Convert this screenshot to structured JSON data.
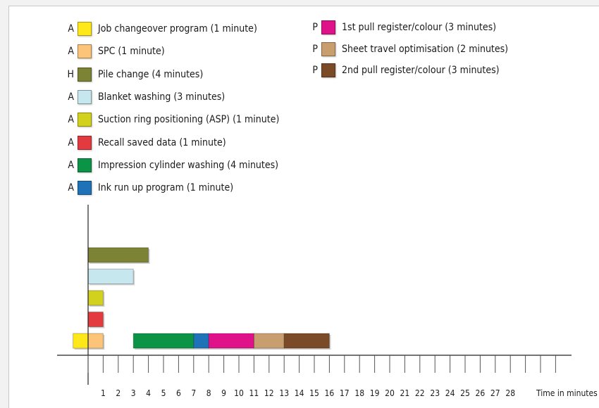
{
  "legend": [
    {
      "cat": "A",
      "label": "Job changeover program (1 minute)",
      "color": "#ffe81a"
    },
    {
      "cat": "A",
      "label": "SPC (1 minute)",
      "color": "#fbc478"
    },
    {
      "cat": "H",
      "label": "Pile change (4 minutes)",
      "color": "#7d8334"
    },
    {
      "cat": "A",
      "label": "Blanket washing (3 minutes)",
      "color": "#c7e7ee"
    },
    {
      "cat": "A",
      "label": "Suction ring positioning (ASP) (1 minute)",
      "color": "#d1d11e"
    },
    {
      "cat": "A",
      "label": "Recall saved data (1 minute)",
      "color": "#e33a40"
    },
    {
      "cat": "A",
      "label": "Impression cylinder washing (4 minutes)",
      "color": "#0c9446"
    },
    {
      "cat": "A",
      "label": "Ink run up program (1 minute)",
      "color": "#1e73b8"
    },
    {
      "cat": "P",
      "label": "1st pull register/colour (3 minutes)",
      "color": "#e0128a"
    },
    {
      "cat": "P",
      "label": "Sheet travel optimisation (2 minutes)",
      "color": "#c99e6e"
    },
    {
      "cat": "P",
      "label": "2nd pull register/colour (3 minutes)",
      "color": "#7b4a26"
    }
  ],
  "chart_data": {
    "type": "gantt",
    "xlabel": "Time in minutes",
    "tick_labels": [
      "1",
      "2",
      "3",
      "4",
      "5",
      "6",
      "7",
      "8",
      "9",
      "10",
      "11",
      "12",
      "13",
      "14",
      "15",
      "16",
      "17",
      "18",
      "19",
      "20",
      "21",
      "22",
      "23",
      "24",
      "25",
      "26",
      "27",
      "28"
    ],
    "xlim": [
      -1,
      32
    ],
    "series": [
      {
        "name": "Pile change (4 minutes)",
        "lane": 4,
        "start": 0,
        "end": 4,
        "color": "#7d8334"
      },
      {
        "name": "Blanket washing (3 minutes)",
        "lane": 3,
        "start": 0,
        "end": 3,
        "color": "#c7e7ee"
      },
      {
        "name": "Suction ring positioning (ASP) (1 minute)",
        "lane": 2,
        "start": 0,
        "end": 1,
        "color": "#d1d11e"
      },
      {
        "name": "Recall saved data (1 minute)",
        "lane": 1,
        "start": 0,
        "end": 1,
        "color": "#e33a40"
      },
      {
        "name": "Job changeover program (1 minute)",
        "lane": 0,
        "start": -1,
        "end": 0,
        "color": "#ffe81a"
      },
      {
        "name": "SPC (1 minute)",
        "lane": 0,
        "start": 0,
        "end": 1,
        "color": "#fbc478"
      },
      {
        "name": "Impression cylinder washing (4 minutes)",
        "lane": 0,
        "start": 3,
        "end": 7,
        "color": "#0c9446"
      },
      {
        "name": "Ink run up program (1 minute)",
        "lane": 0,
        "start": 7,
        "end": 8,
        "color": "#1e73b8"
      },
      {
        "name": "1st pull register/colour (3 minutes)",
        "lane": 0,
        "start": 8,
        "end": 11,
        "color": "#e0128a"
      },
      {
        "name": "Sheet travel optimisation (2 minutes)",
        "lane": 0,
        "start": 11,
        "end": 13,
        "color": "#c99e6e"
      },
      {
        "name": "2nd pull register/colour (3 minutes)",
        "lane": 0,
        "start": 13,
        "end": 16,
        "color": "#7b4a26"
      }
    ]
  }
}
